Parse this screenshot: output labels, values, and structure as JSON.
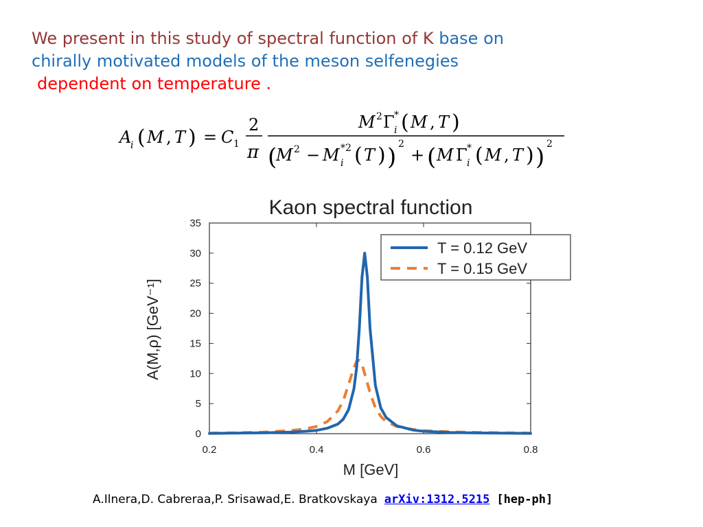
{
  "intro": {
    "line1_a": "We present in this study of spectral function of K",
    "line1_b": " base on",
    "line2": "chirally motivated models of the meson selfenegies",
    "line3": "dependent on temperature ."
  },
  "formula": {
    "lhs": "A_i(M,T) = C_1 (2/π) M²Γ*_i(M,T) / [ (M² − M*²_i(T))² + (M Γ*_i(M,T))² ]"
  },
  "citation": {
    "authors": "A.Ilnera,D. Cabreraa,P. Srisawad,E. Bratkovskaya",
    "arxiv": "arXiv:1312.5215",
    "category": "[hep-ph]"
  },
  "chart_data": {
    "type": "line",
    "title": "Kaon spectral function",
    "xlabel": "M [GeV]",
    "ylabel": "A(M,ρ) [GeV⁻¹]",
    "xlim": [
      0.2,
      0.8
    ],
    "ylim": [
      0,
      35
    ],
    "xticks": [
      0.2,
      0.4,
      0.6,
      0.8
    ],
    "yticks": [
      0,
      5,
      10,
      15,
      20,
      25,
      30,
      35
    ],
    "legend_position": "top-right",
    "series": [
      {
        "name": "T = 0.12 GeV",
        "style": "solid",
        "color": "#2166ac",
        "x": [
          0.2,
          0.25,
          0.3,
          0.35,
          0.38,
          0.4,
          0.42,
          0.44,
          0.45,
          0.46,
          0.47,
          0.475,
          0.48,
          0.485,
          0.49,
          0.495,
          0.5,
          0.51,
          0.52,
          0.53,
          0.55,
          0.58,
          0.6,
          0.65,
          0.7,
          0.75,
          0.8
        ],
        "y": [
          0.05,
          0.1,
          0.15,
          0.25,
          0.4,
          0.55,
          0.9,
          1.6,
          2.4,
          4.0,
          7.5,
          11.0,
          17.5,
          26.0,
          30.0,
          26.0,
          17.5,
          8.0,
          4.3,
          2.7,
          1.3,
          0.6,
          0.4,
          0.2,
          0.12,
          0.08,
          0.05
        ]
      },
      {
        "name": "T = 0.15 GeV",
        "style": "dashed",
        "color": "#ed7d31",
        "x": [
          0.2,
          0.25,
          0.3,
          0.35,
          0.38,
          0.4,
          0.42,
          0.44,
          0.45,
          0.46,
          0.47,
          0.475,
          0.48,
          0.485,
          0.49,
          0.5,
          0.51,
          0.52,
          0.53,
          0.55,
          0.58,
          0.6,
          0.65,
          0.7,
          0.75,
          0.8
        ],
        "y": [
          0.1,
          0.15,
          0.25,
          0.5,
          0.8,
          1.2,
          2.0,
          3.8,
          5.5,
          8.2,
          11.0,
          12.0,
          12.2,
          11.5,
          10.0,
          6.8,
          4.3,
          2.9,
          2.0,
          1.2,
          0.7,
          0.5,
          0.3,
          0.2,
          0.15,
          0.1
        ]
      }
    ]
  }
}
